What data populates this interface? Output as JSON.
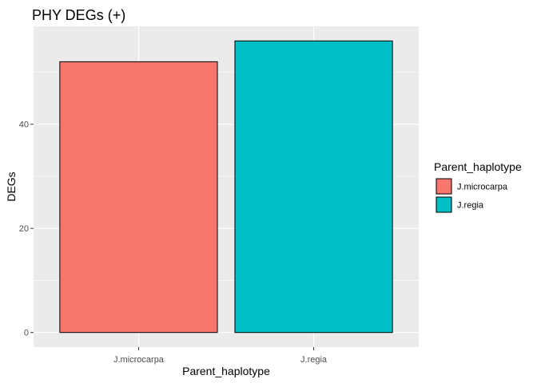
{
  "chart_data": {
    "type": "bar",
    "title": "PHY DEGs (+)",
    "xlabel": "Parent_haplotype",
    "ylabel": "DEGs",
    "categories": [
      "J.microcarpa",
      "J.regia"
    ],
    "values": [
      52,
      56
    ],
    "ylim": [
      -2.8,
      58.8
    ],
    "yticks": [
      0,
      20,
      40
    ],
    "ytick_labels": [
      "0",
      "20",
      "40"
    ],
    "bar_colors": [
      "#F8766D",
      "#00BFC4"
    ],
    "panel_background": "#EBEBEB",
    "grid": true,
    "legend": {
      "title": "Parent_haplotype",
      "entries": [
        "J.microcarpa",
        "J.regia"
      ],
      "position": "right"
    }
  }
}
